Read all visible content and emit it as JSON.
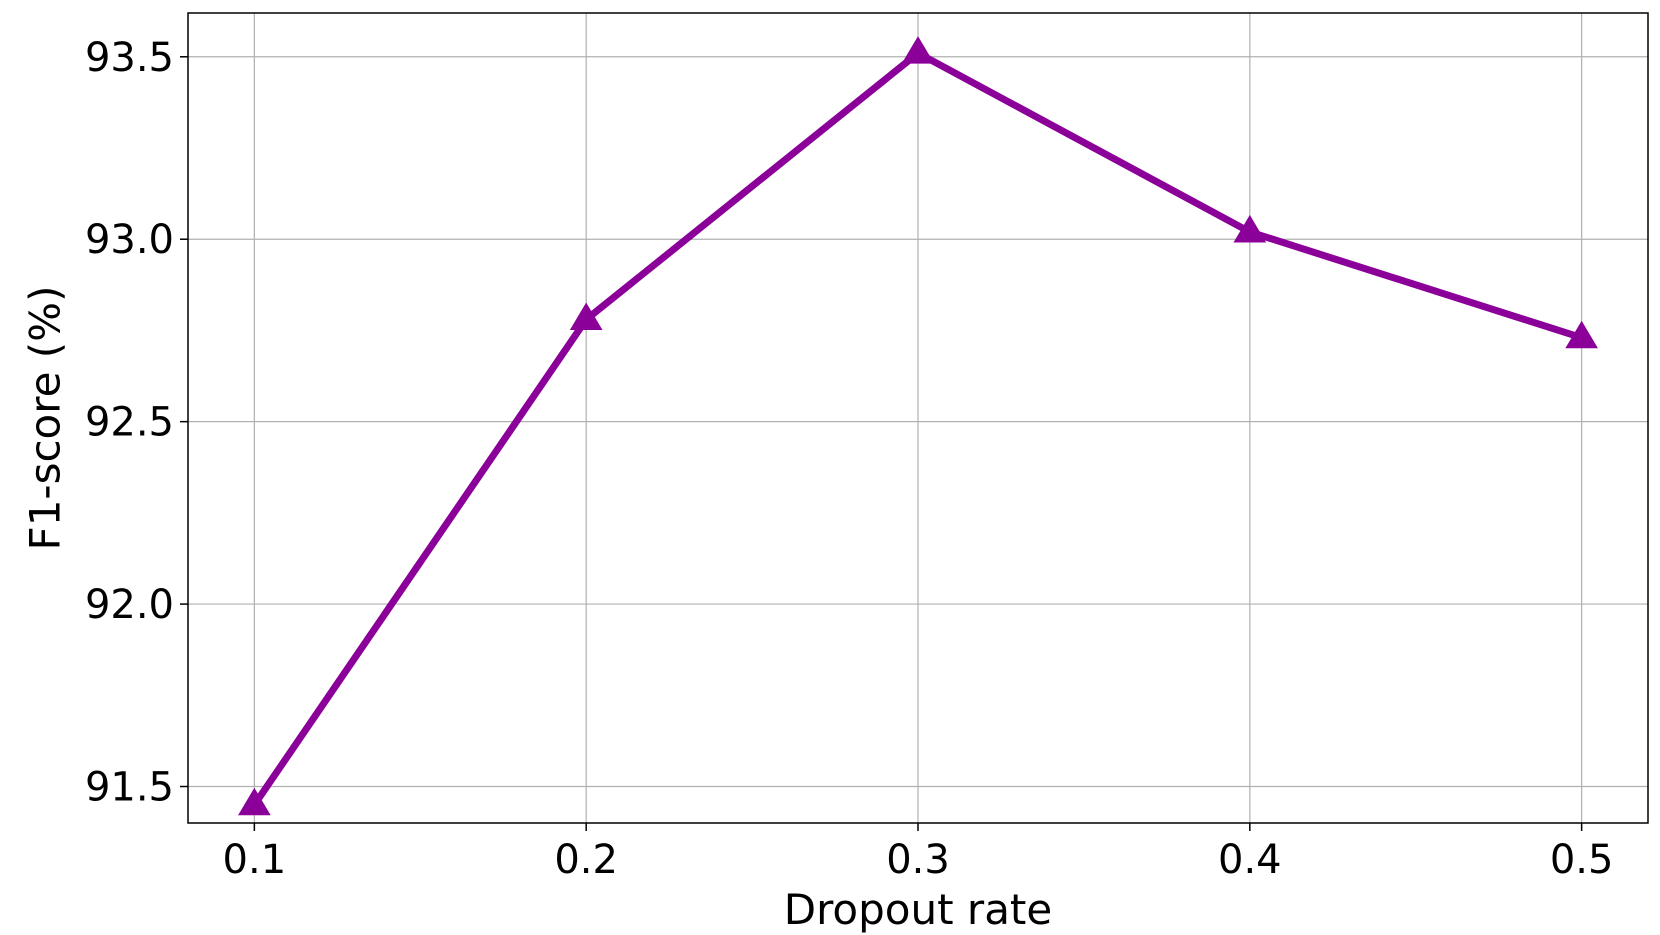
{
  "chart_data": {
    "type": "line",
    "xlabel": "Dropout rate",
    "ylabel": "F1-score (%)",
    "x": [
      0.1,
      0.2,
      0.3,
      0.4,
      0.5
    ],
    "x_tick_labels": [
      "0.1",
      "0.2",
      "0.3",
      "0.4",
      "0.5"
    ],
    "y_tick_values": [
      91.5,
      92.0,
      92.5,
      93.0,
      93.5
    ],
    "y_tick_labels": [
      "91.5",
      "92.0",
      "92.5",
      "93.0",
      "93.5"
    ],
    "xlim": [
      0.08,
      0.52
    ],
    "ylim": [
      91.4,
      93.62
    ],
    "grid": true,
    "series": [
      {
        "values": [
          91.45,
          92.78,
          93.51,
          93.02,
          92.73
        ],
        "color": "#8B0099",
        "marker": "triangle"
      }
    ]
  }
}
